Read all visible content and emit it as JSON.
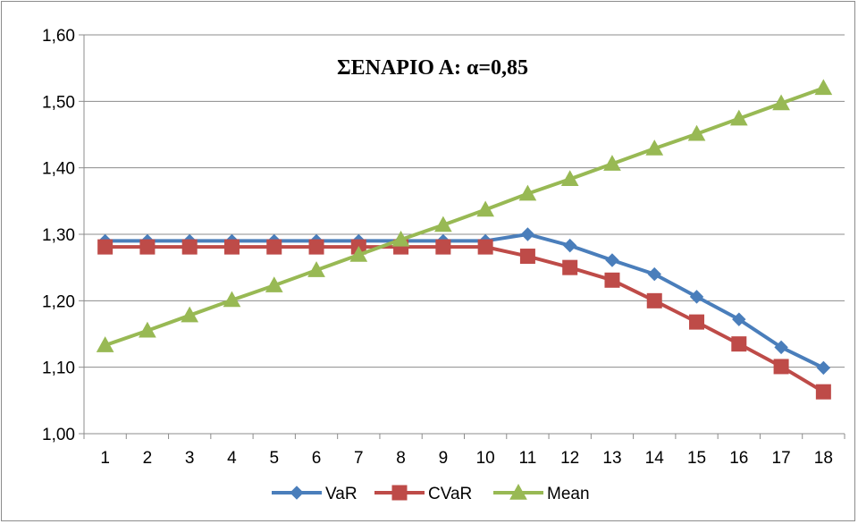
{
  "chart_data": {
    "type": "line",
    "title": "ΣΕΝΑΡΙΟ Α: α=0,85",
    "xlabel": "",
    "ylabel": "",
    "categories": [
      "1",
      "2",
      "3",
      "4",
      "5",
      "6",
      "7",
      "8",
      "9",
      "10",
      "11",
      "12",
      "13",
      "14",
      "15",
      "16",
      "17",
      "18"
    ],
    "ylim": [
      1.0,
      1.6
    ],
    "yticks": [
      "1,00",
      "1,10",
      "1,20",
      "1,30",
      "1,40",
      "1,50",
      "1,60"
    ],
    "grid": "horizontal",
    "legend": "bottom",
    "series": [
      {
        "name": "VaR",
        "color": "#4a7ebb",
        "marker": "diamond",
        "values": [
          1.29,
          1.29,
          1.29,
          1.29,
          1.29,
          1.29,
          1.29,
          1.29,
          1.29,
          1.29,
          1.3,
          1.283,
          1.261,
          1.24,
          1.206,
          1.172,
          1.13,
          1.099
        ]
      },
      {
        "name": "CVaR",
        "color": "#be4b48",
        "marker": "square",
        "values": [
          1.281,
          1.281,
          1.281,
          1.281,
          1.281,
          1.281,
          1.281,
          1.281,
          1.281,
          1.281,
          1.267,
          1.25,
          1.231,
          1.2,
          1.168,
          1.135,
          1.101,
          1.063
        ]
      },
      {
        "name": "Mean",
        "color": "#98b954",
        "marker": "triangle",
        "values": [
          1.133,
          1.155,
          1.178,
          1.201,
          1.223,
          1.246,
          1.269,
          1.292,
          1.314,
          1.337,
          1.361,
          1.383,
          1.406,
          1.429,
          1.451,
          1.474,
          1.497,
          1.52
        ]
      }
    ]
  }
}
